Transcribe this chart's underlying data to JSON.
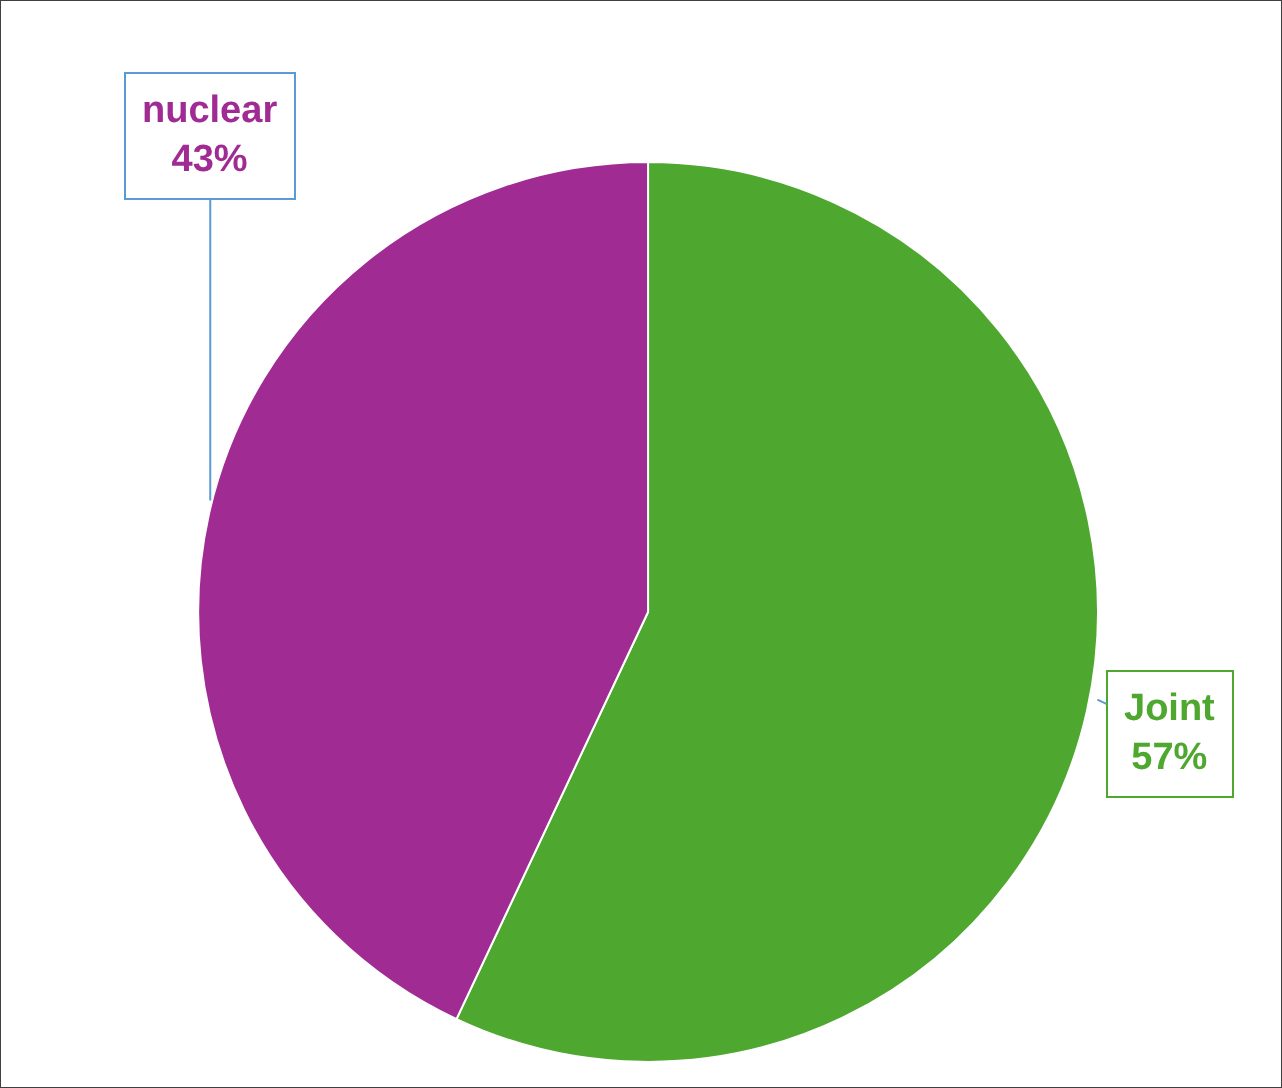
{
  "chart_data": {
    "type": "pie",
    "categories": [
      "Joint",
      "nuclear"
    ],
    "values": [
      57,
      43
    ],
    "colors": [
      "#4ea72e",
      "#a02b93"
    ],
    "value_labels": [
      "57%",
      "43%"
    ],
    "legend": false
  }
}
